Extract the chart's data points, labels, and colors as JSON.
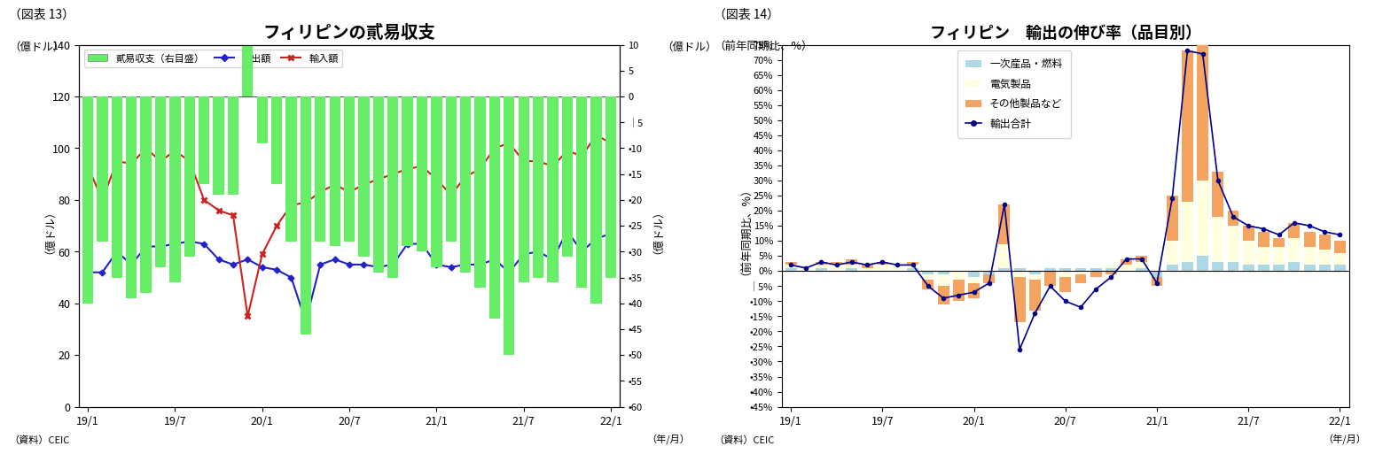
{
  "chart1": {
    "title": "フィリピンの貳易収支",
    "title_label": "（図表 13）",
    "ylabel_left": "（億ドル）",
    "ylabel_right": "（億ドル）",
    "source": "（資料）CEIC",
    "xlabel": "（年/月）",
    "bar_color": "#66EE66",
    "line_export_color": "#2222CC",
    "line_import_color": "#CC2222",
    "legend_bar": "貳易収支（右目盛）",
    "legend_export": "輸出額",
    "legend_import": "輸入額",
    "x_tick_labels": [
      "19/1",
      "19/7",
      "20/1",
      "20/7",
      "21/1",
      "21/7",
      "22/1"
    ],
    "x_tick_pos": [
      0,
      6,
      12,
      18,
      24,
      30,
      36
    ],
    "ylim_left": [
      0,
      140
    ],
    "yticks_left": [
      0,
      20,
      40,
      60,
      80,
      100,
      120,
      140
    ],
    "ylim_right": [
      -60,
      10
    ],
    "right_yticks": [
      10,
      5,
      0,
      -5,
      -10,
      -15,
      -20,
      -25,
      -30,
      -35,
      -40,
      -45,
      -50,
      -55,
      -60
    ],
    "right_ylabels": [
      "10",
      "5",
      "0",
      "│5",
      "•10",
      "•15",
      "•20",
      "•25",
      "•30",
      "•35",
      "•40",
      "•45",
      "•50",
      "•55",
      "•60"
    ],
    "n": 37,
    "export": [
      52,
      52,
      60,
      55,
      62,
      62,
      63,
      64,
      63,
      57,
      55,
      57,
      54,
      53,
      50,
      33,
      55,
      57,
      55,
      55,
      54,
      55,
      63,
      63,
      55,
      54,
      55,
      55,
      57,
      52,
      59,
      60,
      57,
      68,
      60,
      65,
      67
    ],
    "import_v": [
      93,
      80,
      95,
      94,
      100,
      95,
      99,
      95,
      80,
      76,
      74,
      35,
      59,
      70,
      78,
      79,
      83,
      86,
      83,
      86,
      88,
      90,
      92,
      93,
      88,
      82,
      89,
      92,
      100,
      102,
      95,
      95,
      93,
      99,
      97,
      105,
      102
    ],
    "trade_bal": [
      -40,
      -28,
      -35,
      -39,
      -38,
      -33,
      -36,
      -31,
      -17,
      -19,
      -19,
      22,
      -9,
      -17,
      -28,
      -46,
      -28,
      -29,
      -28,
      -31,
      -34,
      -35,
      -29,
      -30,
      -33,
      -28,
      -34,
      -37,
      -43,
      -50,
      -36,
      -35,
      -36,
      -31,
      -37,
      -40,
      -35
    ]
  },
  "chart2": {
    "title": "フィリピン　輸出の伸び率（品目別）",
    "title_label": "（図表 14）",
    "ylabel": "（前年同期比、%）",
    "source": "（資料）CEIC",
    "xlabel": "（年/月）",
    "bar1_color": "#ADD8E6",
    "bar2_color": "#FFFFE0",
    "bar3_color": "#F4A460",
    "line_color": "#00008B",
    "legend": [
      "一次産品・燃料",
      "電気製品",
      "その他製品など",
      "輸出合計"
    ],
    "x_tick_labels": [
      "19/1",
      "19/7",
      "20/1",
      "20/7",
      "21/1",
      "21/7",
      "22/1"
    ],
    "x_tick_pos": [
      0,
      6,
      12,
      18,
      24,
      30,
      36
    ],
    "ylim": [
      -45,
      75
    ],
    "yticks": [
      75,
      70,
      65,
      60,
      55,
      50,
      45,
      40,
      35,
      30,
      25,
      20,
      15,
      10,
      5,
      0,
      -5,
      -10,
      -15,
      -20,
      -25,
      -30,
      -35,
      -40,
      -45
    ],
    "ylabels": [
      "75%",
      "70%",
      "65%",
      "60%",
      "55%",
      "50%",
      "45%",
      "40%",
      "35%",
      "30%",
      "25%",
      "20%",
      "15%",
      "10%",
      "5%",
      "0%",
      "│5%",
      "•10%",
      "•15%",
      "•20%",
      "•25%",
      "•30%",
      "•35%",
      "•40%",
      "•45%"
    ],
    "n": 37,
    "primary": [
      1,
      0,
      1,
      0,
      1,
      0,
      0,
      0,
      1,
      -1,
      -1,
      0,
      -2,
      -1,
      1,
      1,
      -1,
      1,
      1,
      1,
      1,
      1,
      0,
      1,
      -2,
      2,
      3,
      5,
      3,
      3,
      2,
      2,
      2,
      3,
      2,
      2,
      2
    ],
    "electric": [
      1,
      1,
      1,
      2,
      1,
      1,
      2,
      2,
      1,
      -2,
      -4,
      -3,
      -2,
      0,
      8,
      -2,
      -2,
      0,
      -2,
      -1,
      0,
      1,
      2,
      2,
      0,
      8,
      20,
      25,
      15,
      12,
      8,
      6,
      6,
      8,
      6,
      5,
      4
    ],
    "other": [
      1,
      0,
      1,
      1,
      2,
      1,
      1,
      0,
      1,
      -3,
      -6,
      -7,
      -5,
      -3,
      13,
      -15,
      -10,
      -5,
      -5,
      -3,
      -2,
      -1,
      2,
      2,
      -3,
      15,
      50,
      45,
      15,
      5,
      5,
      5,
      3,
      5,
      5,
      5,
      4
    ],
    "total": [
      2,
      1,
      3,
      2,
      3,
      2,
      3,
      2,
      2,
      -5,
      -9,
      -8,
      -7,
      -4,
      22,
      -26,
      -14,
      -5,
      -10,
      -12,
      -6,
      -2,
      4,
      4,
      -4,
      24,
      73,
      72,
      30,
      18,
      15,
      14,
      12,
      16,
      15,
      13,
      12
    ]
  }
}
